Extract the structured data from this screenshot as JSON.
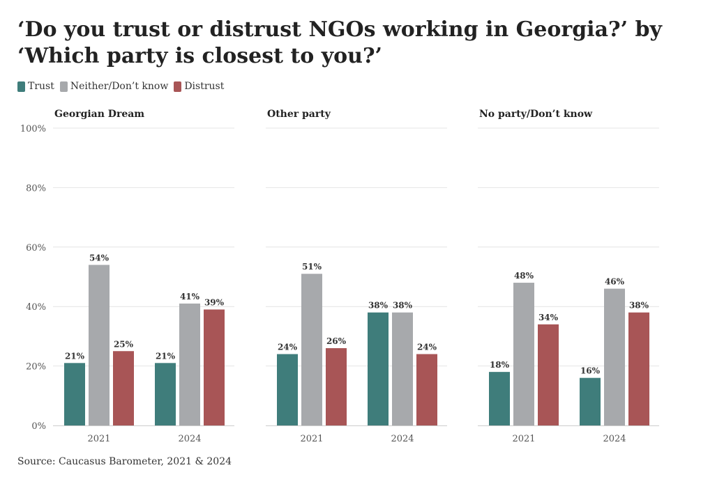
{
  "title": "‘Do you trust or distrust NGOs working in Georgia?’ by ‘Which party is closest to you?’",
  "source": "Source: Caucasus Barometer, 2021 & 2024",
  "colors": {
    "Trust": "#3f7d7b",
    "Neither/Don’t know": "#a7a9ac",
    "Distrust": "#a85556",
    "grid": "#e4e4e4",
    "axis": "#cccccc"
  },
  "chart_data": {
    "type": "bar",
    "ylim": [
      0,
      100
    ],
    "y_ticks": [
      0,
      20,
      40,
      60,
      80,
      100
    ],
    "y_tick_labels": [
      "0%",
      "20%",
      "40%",
      "60%",
      "80%",
      "100%"
    ],
    "categories": [
      "2021",
      "2024"
    ],
    "legend": [
      "Trust",
      "Neither/Don’t know",
      "Distrust"
    ],
    "legend_position": "top-left",
    "grid": true,
    "panels": [
      {
        "title": "Georgian Dream",
        "series": [
          {
            "name": "Trust",
            "values": [
              21,
              21
            ]
          },
          {
            "name": "Neither/Don’t know",
            "values": [
              54,
              41
            ]
          },
          {
            "name": "Distrust",
            "values": [
              25,
              39
            ]
          }
        ]
      },
      {
        "title": "Other party",
        "series": [
          {
            "name": "Trust",
            "values": [
              24,
              38
            ]
          },
          {
            "name": "Neither/Don’t know",
            "values": [
              51,
              38
            ]
          },
          {
            "name": "Distrust",
            "values": [
              26,
              24
            ]
          }
        ]
      },
      {
        "title": "No party/Don’t know",
        "series": [
          {
            "name": "Trust",
            "values": [
              18,
              16
            ]
          },
          {
            "name": "Neither/Don’t know",
            "values": [
              48,
              46
            ]
          },
          {
            "name": "Distrust",
            "values": [
              34,
              38
            ]
          }
        ]
      }
    ]
  }
}
